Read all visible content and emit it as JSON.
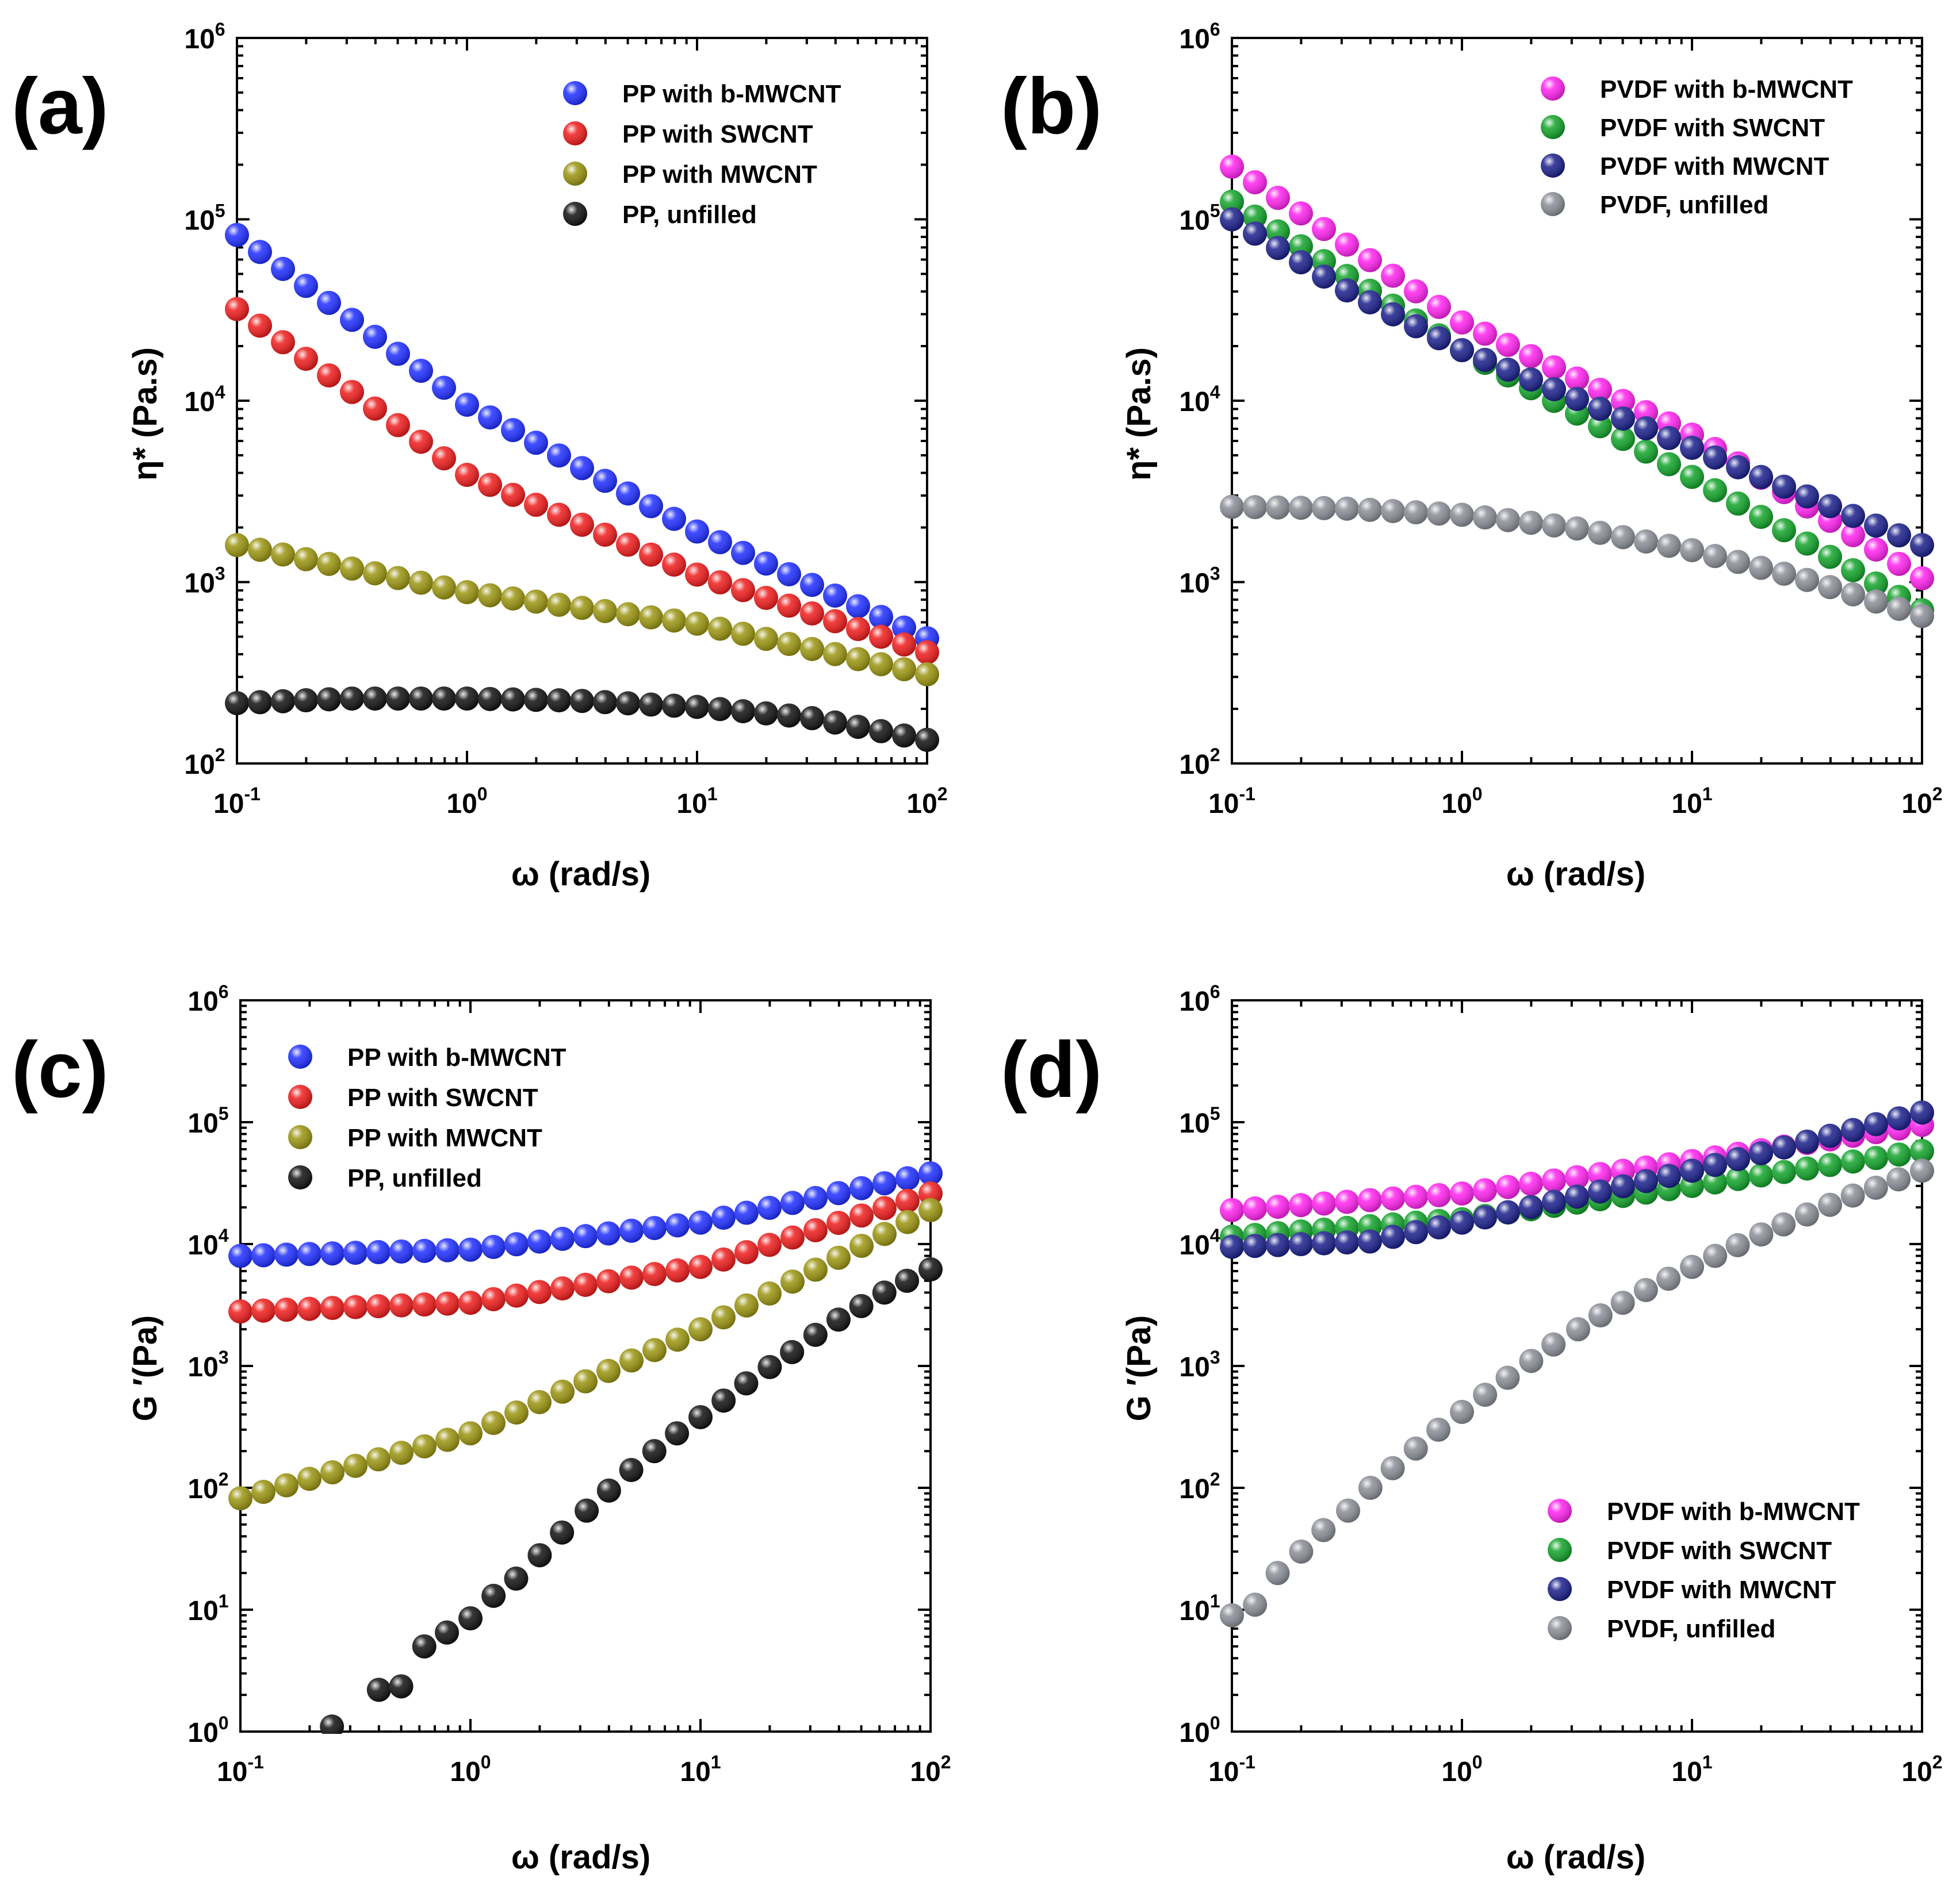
{
  "chart_data": [
    {
      "id": "a",
      "type": "scatter",
      "panel_label": "(a)",
      "xlabel": "ω (rad/s)",
      "ylabel": "η* (Pa.s)",
      "xscale": "log",
      "yscale": "log",
      "xlim": [
        0.1,
        100
      ],
      "ylim": [
        100,
        1000000
      ],
      "x_tick_labels": [
        "10-1",
        "100",
        "101",
        "102"
      ],
      "y_tick_labels": [
        "102",
        "103",
        "104",
        "105",
        "106"
      ],
      "legend_position": "top-right",
      "series": [
        {
          "name": "PP with b-MWCNT",
          "color": "#1f2eff",
          "points": [
            [
              0.1,
              82000
            ],
            [
              1,
              9500
            ],
            [
              10,
              1900
            ],
            [
              100,
              490
            ]
          ]
        },
        {
          "name": "PP with SWCNT",
          "color": "#ee1c1c",
          "points": [
            [
              0.1,
              32000
            ],
            [
              1,
              3900
            ],
            [
              10,
              1100
            ],
            [
              100,
              410
            ]
          ]
        },
        {
          "name": "PP with MWCNT",
          "color": "#9a9410",
          "points": [
            [
              0.1,
              1600
            ],
            [
              1,
              880
            ],
            [
              10,
              590
            ],
            [
              100,
              310
            ]
          ]
        },
        {
          "name": "PP, unfilled",
          "color": "#111111",
          "points": [
            [
              0.1,
              215
            ],
            [
              0.3,
              228
            ],
            [
              1,
              228
            ],
            [
              3,
              222
            ],
            [
              10,
              205
            ],
            [
              30,
              180
            ],
            [
              100,
              135
            ]
          ]
        }
      ]
    },
    {
      "id": "b",
      "type": "scatter",
      "panel_label": "(b)",
      "xlabel": "ω (rad/s)",
      "ylabel": "η* (Pa.s)",
      "xscale": "log",
      "yscale": "log",
      "xlim": [
        0.1,
        100
      ],
      "ylim": [
        100,
        1000000
      ],
      "x_tick_labels": [
        "10-1",
        "100",
        "101",
        "102"
      ],
      "y_tick_labels": [
        "102",
        "103",
        "104",
        "105",
        "106"
      ],
      "legend_position": "top-right",
      "series": [
        {
          "name": "PVDF with b-MWCNT",
          "color": "#ff22ee",
          "points": [
            [
              0.1,
              195000
            ],
            [
              1,
              27000
            ],
            [
              10,
              6500
            ],
            [
              100,
              1050
            ]
          ]
        },
        {
          "name": "PVDF with SWCNT",
          "color": "#12a32a",
          "points": [
            [
              0.1,
              125000
            ],
            [
              1,
              19000
            ],
            [
              10,
              3800
            ],
            [
              100,
              700
            ]
          ]
        },
        {
          "name": "PVDF with MWCNT",
          "color": "#1a1f8a",
          "points": [
            [
              0.1,
              100000
            ],
            [
              0.3,
              42000
            ],
            [
              1,
              19000
            ],
            [
              10,
              5500
            ],
            [
              100,
              1600
            ]
          ]
        },
        {
          "name": "PVDF, unfilled",
          "color": "#8a8d96",
          "points": [
            [
              0.1,
              2600
            ],
            [
              0.3,
              2550
            ],
            [
              1,
              2350
            ],
            [
              3,
              2000
            ],
            [
              10,
              1500
            ],
            [
              30,
              1050
            ],
            [
              100,
              650
            ]
          ]
        }
      ]
    },
    {
      "id": "c",
      "type": "scatter",
      "panel_label": "(c)",
      "xlabel": "ω (rad/s)",
      "ylabel": "G ′(Pa)",
      "xscale": "log",
      "yscale": "log",
      "xlim": [
        0.1,
        100
      ],
      "ylim": [
        1,
        1000000
      ],
      "x_tick_labels": [
        "10-1",
        "100",
        "101",
        "102"
      ],
      "y_tick_labels": [
        "100",
        "101",
        "102",
        "103",
        "104",
        "105",
        "106"
      ],
      "legend_position": "top-left",
      "series": [
        {
          "name": "PP with b-MWCNT",
          "color": "#1f2eff",
          "points": [
            [
              0.1,
              8000
            ],
            [
              1,
              9000
            ],
            [
              10,
              15000
            ],
            [
              100,
              38000
            ]
          ]
        },
        {
          "name": "PP with SWCNT",
          "color": "#ee1c1c",
          "points": [
            [
              0.1,
              2800
            ],
            [
              1,
              3300
            ],
            [
              10,
              6500
            ],
            [
              100,
              26000
            ]
          ]
        },
        {
          "name": "PP with MWCNT",
          "color": "#9a9410",
          "points": [
            [
              0.1,
              82
            ],
            [
              1,
              280
            ],
            [
              10,
              2000
            ],
            [
              100,
              19000
            ]
          ]
        },
        {
          "name": "PP, unfilled",
          "color": "#111111",
          "x": [
            0.25,
            0.4,
            0.5,
            0.63,
            0.79,
            1,
            1.26,
            1.58,
            2,
            2.5,
            3.2,
            4,
            5,
            6.3,
            7.9,
            10,
            12.6,
            15.8,
            20,
            25,
            31.6,
            39.8,
            50,
            63,
            79,
            100
          ],
          "y": [
            1.1,
            2.2,
            2.35,
            5,
            6.5,
            8.5,
            13,
            18,
            28,
            43,
            65,
            95,
            140,
            200,
            280,
            380,
            520,
            720,
            980,
            1300,
            1800,
            2400,
            3100,
            4000,
            5000,
            6200
          ]
        }
      ]
    },
    {
      "id": "d",
      "type": "scatter",
      "panel_label": "(d)",
      "xlabel": "ω (rad/s)",
      "ylabel": "G ′(Pa)",
      "xscale": "log",
      "yscale": "log",
      "xlim": [
        0.1,
        100
      ],
      "ylim": [
        1,
        1000000
      ],
      "x_tick_labels": [
        "10-1",
        "100",
        "101",
        "102"
      ],
      "y_tick_labels": [
        "100",
        "101",
        "102",
        "103",
        "104",
        "105",
        "106"
      ],
      "legend_position": "bottom-right",
      "series": [
        {
          "name": "PVDF with b-MWCNT",
          "color": "#ff22ee",
          "points": [
            [
              0.1,
              19000
            ],
            [
              1,
              26000
            ],
            [
              10,
              48000
            ],
            [
              100,
              95000
            ]
          ]
        },
        {
          "name": "PVDF with SWCNT",
          "color": "#12a32a",
          "points": [
            [
              0.1,
              11500
            ],
            [
              1,
              16000
            ],
            [
              10,
              30000
            ],
            [
              100,
              58000
            ]
          ]
        },
        {
          "name": "PVDF with MWCNT",
          "color": "#1a1f8a",
          "points": [
            [
              0.1,
              9500
            ],
            [
              0.4,
              10500
            ],
            [
              1,
              15000
            ],
            [
              10,
              40000
            ],
            [
              100,
              120000
            ]
          ]
        },
        {
          "name": "PVDF, unfilled",
          "color": "#8a8d96",
          "x": [
            0.1,
            0.126,
            0.158,
            0.2,
            0.25,
            0.32,
            0.4,
            0.5,
            0.63,
            0.79,
            1,
            1.26,
            1.58,
            2,
            2.5,
            3.2,
            4,
            5,
            6.3,
            7.9,
            10,
            12.6,
            15.8,
            20,
            25,
            31.6,
            39.8,
            50,
            63,
            79,
            100
          ],
          "y": [
            9,
            11,
            20,
            30,
            45,
            65,
            100,
            145,
            210,
            300,
            420,
            580,
            800,
            1100,
            1500,
            2000,
            2600,
            3300,
            4200,
            5200,
            6500,
            8000,
            9800,
            12000,
            14500,
            17500,
            21000,
            25000,
            29000,
            34000,
            40000
          ]
        }
      ]
    }
  ]
}
